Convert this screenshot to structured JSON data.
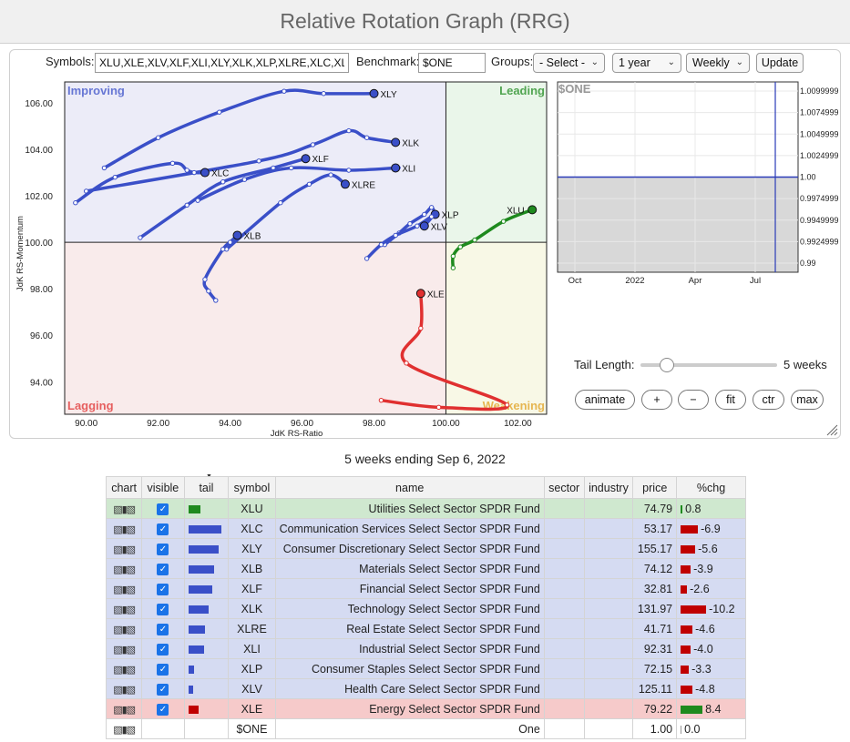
{
  "title": "Relative Rotation Graph (RRG)",
  "controls": {
    "symbols_label": "Symbols:",
    "symbols_value": "XLU,XLE,XLV,XLF,XLI,XLY,XLK,XLP,XLRE,XLC,XLB",
    "benchmark_label": "Benchmark:",
    "benchmark_value": "$ONE",
    "groups_label": "Groups:",
    "groups_value": "- Select -",
    "period_value": "1 year",
    "interval_value": "Weekly",
    "update_label": "Update",
    "tail_length_label": "Tail Length:",
    "tail_length_value": "5 weeks",
    "tail_slider_fraction": 0.16,
    "buttons": [
      "animate",
      "+",
      "−",
      "fit",
      "ctr",
      "max"
    ]
  },
  "colors": {
    "improving_bg": "#ececf8",
    "leading_bg": "#eaf6ea",
    "weakening_bg": "#f8f8e6",
    "lagging_bg": "#f9ebeb",
    "improving": "#3a4fc8",
    "leading": "#1e8a1e",
    "weakening": "#e0a020",
    "lagging": "#e03030"
  },
  "chart_data": {
    "type": "scatter",
    "xlabel": "JdK RS-Ratio",
    "ylabel": "JdK RS-Momentum",
    "xlim": [
      89.4,
      102.8
    ],
    "ylim": [
      92.6,
      106.9
    ],
    "x_ticks": [
      90,
      92,
      94,
      96,
      98,
      100,
      102
    ],
    "x_tick_labels": [
      "90.00",
      "92.00",
      "94.00",
      "96.00",
      "98.00",
      "100.00",
      "102.00"
    ],
    "y_ticks": [
      94,
      96,
      98,
      100,
      102,
      104,
      106
    ],
    "y_tick_labels": [
      "94.00",
      "96.00",
      "98.00",
      "100.00",
      "102.00",
      "104.00",
      "106.00"
    ],
    "quadrants": {
      "improving": "Improving",
      "leading": "Leading",
      "weakening": "Weakening",
      "lagging": "Lagging"
    },
    "series": [
      {
        "name": "XLY",
        "quadrant": "improving",
        "x": [
          90.5,
          92.0,
          93.7,
          95.5,
          96.6,
          98.0
        ],
        "y": [
          103.2,
          104.5,
          105.6,
          106.5,
          106.4,
          106.4
        ]
      },
      {
        "name": "XLK",
        "quadrant": "improving",
        "x": [
          90.0,
          94.8,
          96.3,
          97.3,
          97.8,
          98.6
        ],
        "y": [
          102.2,
          103.5,
          104.2,
          104.8,
          104.5,
          104.3
        ]
      },
      {
        "name": "XLF",
        "quadrant": "improving",
        "x": [
          91.5,
          92.8,
          93.8,
          95.2,
          96.1,
          96.1
        ],
        "y": [
          100.2,
          101.6,
          102.6,
          103.2,
          103.6,
          103.6
        ]
      },
      {
        "name": "XLI",
        "quadrant": "improving",
        "x": [
          93.1,
          94.4,
          95.7,
          97.3,
          98.6,
          98.6
        ],
        "y": [
          101.8,
          102.7,
          103.2,
          103.1,
          103.2,
          103.2
        ]
      },
      {
        "name": "XLC",
        "quadrant": "improving",
        "x": [
          89.7,
          90.8,
          92.4,
          92.8,
          93.0,
          93.3
        ],
        "y": [
          101.7,
          102.8,
          103.4,
          103.1,
          103.0,
          103.0
        ]
      },
      {
        "name": "XLRE",
        "quadrant": "improving",
        "x": [
          93.9,
          95.4,
          96.2,
          96.8,
          97.2,
          97.2
        ],
        "y": [
          99.7,
          101.7,
          102.5,
          102.9,
          102.5,
          102.5
        ]
      },
      {
        "name": "XLB",
        "quadrant": "improving",
        "x": [
          93.6,
          93.4,
          93.3,
          93.8,
          94.0,
          94.2
        ],
        "y": [
          97.5,
          97.9,
          98.4,
          99.7,
          100.0,
          100.3
        ]
      },
      {
        "name": "XLP",
        "quadrant": "improving",
        "x": [
          98.3,
          98.7,
          99.0,
          99.4,
          99.6,
          99.7
        ],
        "y": [
          99.9,
          100.4,
          100.8,
          101.2,
          101.5,
          101.2
        ]
      },
      {
        "name": "XLV",
        "quadrant": "improving",
        "x": [
          97.8,
          98.2,
          98.6,
          99.2,
          99.6,
          99.4
        ],
        "y": [
          99.3,
          99.9,
          100.3,
          100.7,
          101.1,
          100.7
        ]
      },
      {
        "name": "XLU",
        "quadrant": "leading",
        "x": [
          100.2,
          100.2,
          100.4,
          100.8,
          101.6,
          102.4
        ],
        "y": [
          98.9,
          99.4,
          99.8,
          100.1,
          100.9,
          101.4
        ]
      },
      {
        "name": "XLE",
        "quadrant": "lagging",
        "x": [
          98.2,
          99.8,
          101.7,
          98.9,
          99.3,
          99.3
        ],
        "y": [
          93.2,
          92.9,
          93.0,
          94.8,
          96.3,
          97.8
        ]
      }
    ],
    "benchmark_chart": {
      "title": "$ONE",
      "x_tick_labels": [
        "Oct",
        "2022",
        "Apr",
        "Jul"
      ],
      "y_tick_labels": [
        "1.0099999",
        "1.0074999",
        "1.0049999",
        "1.0024999",
        "1.00",
        "0.9974999",
        "0.9949999",
        "0.9924999",
        "0.99"
      ],
      "value": 1.0
    }
  },
  "table": {
    "caption": "5 weeks ending Sep 6, 2022",
    "headers": [
      "chart",
      "visible",
      "tail",
      "symbol",
      "name",
      "sector",
      "industry",
      "price",
      "%chg"
    ],
    "rows": [
      {
        "symbol": "XLU",
        "name": "Utilities Select Sector SPDR Fund",
        "price": "74.79",
        "chg": "0.8",
        "tail": 0.35,
        "visible": true,
        "style": "green",
        "tail_color": "#1e8a1e",
        "chg_color": "#1e8a1e"
      },
      {
        "symbol": "XLC",
        "name": "Communication Services Select Sector SPDR Fund",
        "price": "53.17",
        "chg": "-6.9",
        "tail": 1.0,
        "visible": true,
        "style": "blue",
        "tail_color": "#3a4fc8",
        "chg_color": "#c00000"
      },
      {
        "symbol": "XLY",
        "name": "Consumer Discretionary Select Sector SPDR Fund",
        "price": "155.17",
        "chg": "-5.6",
        "tail": 0.92,
        "visible": true,
        "style": "blue",
        "tail_color": "#3a4fc8",
        "chg_color": "#c00000"
      },
      {
        "symbol": "XLB",
        "name": "Materials Select Sector SPDR Fund",
        "price": "74.12",
        "chg": "-3.9",
        "tail": 0.78,
        "visible": true,
        "style": "blue",
        "tail_color": "#3a4fc8",
        "chg_color": "#c00000"
      },
      {
        "symbol": "XLF",
        "name": "Financial Select Sector SPDR Fund",
        "price": "32.81",
        "chg": "-2.6",
        "tail": 0.72,
        "visible": true,
        "style": "blue",
        "tail_color": "#3a4fc8",
        "chg_color": "#c00000"
      },
      {
        "symbol": "XLK",
        "name": "Technology Select Sector SPDR Fund",
        "price": "131.97",
        "chg": "-10.2",
        "tail": 0.62,
        "visible": true,
        "style": "blue",
        "tail_color": "#3a4fc8",
        "chg_color": "#c00000"
      },
      {
        "symbol": "XLRE",
        "name": "Real Estate Select Sector SPDR Fund",
        "price": "41.71",
        "chg": "-4.6",
        "tail": 0.5,
        "visible": true,
        "style": "blue",
        "tail_color": "#3a4fc8",
        "chg_color": "#c00000"
      },
      {
        "symbol": "XLI",
        "name": "Industrial Select Sector SPDR Fund",
        "price": "92.31",
        "chg": "-4.0",
        "tail": 0.48,
        "visible": true,
        "style": "blue",
        "tail_color": "#3a4fc8",
        "chg_color": "#c00000"
      },
      {
        "symbol": "XLP",
        "name": "Consumer Staples Select Sector SPDR Fund",
        "price": "72.15",
        "chg": "-3.3",
        "tail": 0.18,
        "visible": true,
        "style": "blue",
        "tail_color": "#3a4fc8",
        "chg_color": "#c00000"
      },
      {
        "symbol": "XLV",
        "name": "Health Care Select Sector SPDR Fund",
        "price": "125.11",
        "chg": "-4.8",
        "tail": 0.14,
        "visible": true,
        "style": "blue",
        "tail_color": "#3a4fc8",
        "chg_color": "#c00000"
      },
      {
        "symbol": "XLE",
        "name": "Energy Select Sector SPDR Fund",
        "price": "79.22",
        "chg": "8.4",
        "tail": 0.3,
        "visible": true,
        "style": "red",
        "tail_color": "#c00000",
        "chg_color": "#1e8a1e"
      },
      {
        "symbol": "$ONE",
        "name": "One",
        "price": "1.00",
        "chg": "0.0",
        "tail": 0,
        "visible": false,
        "style": "white",
        "tail_color": "#999999",
        "chg_color": "#999999"
      }
    ]
  }
}
